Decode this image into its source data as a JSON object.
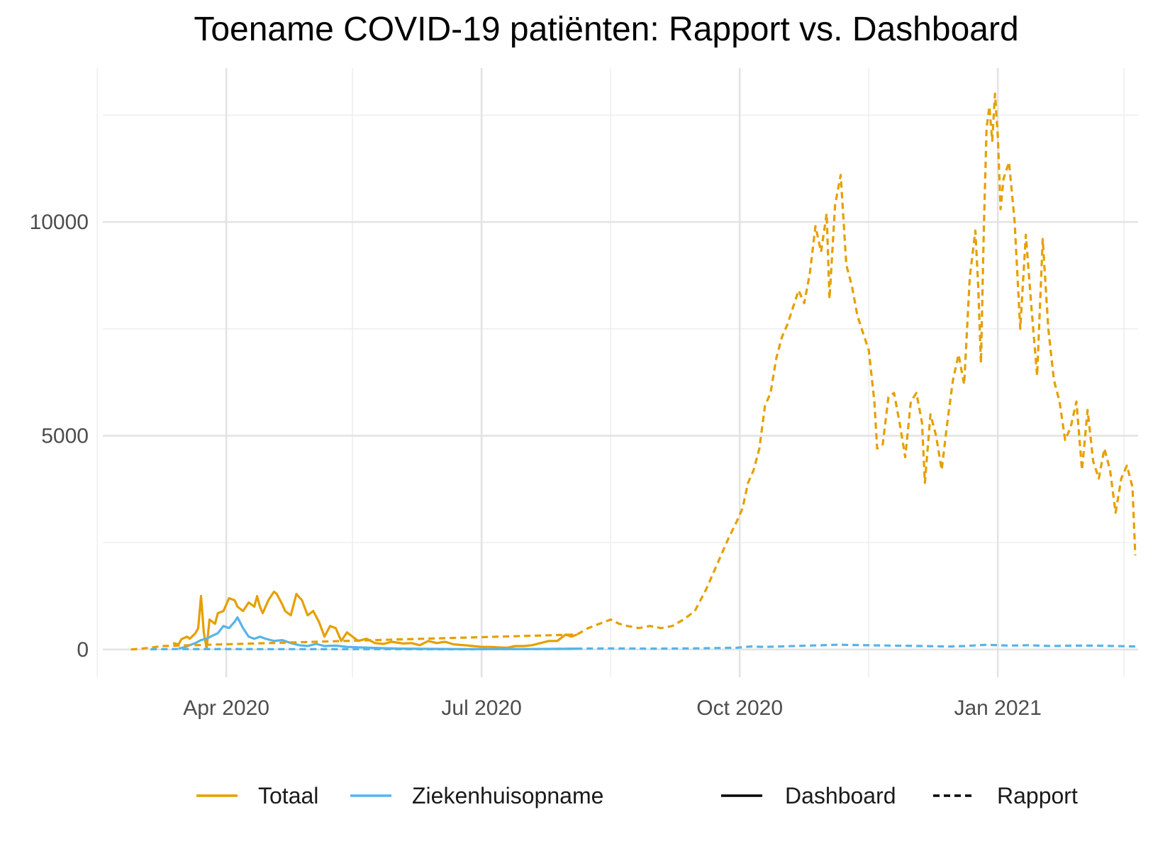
{
  "chart_data": {
    "type": "line",
    "title": "Toename COVID-19 patiënten: Rapport vs. Dashboard",
    "xlabel": "",
    "ylabel": "",
    "x_range": [
      "2020-02-17",
      "2021-02-20"
    ],
    "ylim": [
      -650,
      13600
    ],
    "x_ticks": [
      {
        "date": "2020-04-01",
        "label": "Apr 2020"
      },
      {
        "date": "2020-07-01",
        "label": "Jul 2020"
      },
      {
        "date": "2020-10-01",
        "label": "Oct 2020"
      },
      {
        "date": "2021-01-01",
        "label": "Jan 2021"
      }
    ],
    "x_minor_ticks": [
      "2020-02-15",
      "2020-05-16",
      "2020-08-16",
      "2020-11-16",
      "2021-02-15"
    ],
    "y_ticks": [
      0,
      5000,
      10000
    ],
    "y_minor_ticks": [
      2500,
      7500,
      12500
    ],
    "grid": true,
    "legend_position": "bottom",
    "legend": {
      "colour": [
        {
          "label": "Totaal",
          "color": "#E69F00"
        },
        {
          "label": "Ziekenhuisopname",
          "color": "#56B4E9"
        }
      ],
      "linetype": [
        {
          "label": "Dashboard",
          "style": "solid"
        },
        {
          "label": "Rapport",
          "style": "dashed"
        }
      ]
    },
    "series": [
      {
        "name": "Totaal",
        "source": "Dashboard",
        "color": "#E69F00",
        "style": "solid",
        "points": [
          [
            "2020-03-13",
            150
          ],
          [
            "2020-03-15",
            120
          ],
          [
            "2020-03-16",
            240
          ],
          [
            "2020-03-18",
            300
          ],
          [
            "2020-03-19",
            250
          ],
          [
            "2020-03-21",
            380
          ],
          [
            "2020-03-22",
            500
          ],
          [
            "2020-03-23",
            1250
          ],
          [
            "2020-03-24",
            400
          ],
          [
            "2020-03-25",
            20
          ],
          [
            "2020-03-26",
            700
          ],
          [
            "2020-03-28",
            600
          ],
          [
            "2020-03-29",
            850
          ],
          [
            "2020-03-31",
            900
          ],
          [
            "2020-04-02",
            1200
          ],
          [
            "2020-04-04",
            1150
          ],
          [
            "2020-04-05",
            1000
          ],
          [
            "2020-04-07",
            900
          ],
          [
            "2020-04-09",
            1100
          ],
          [
            "2020-04-11",
            1000
          ],
          [
            "2020-04-12",
            1250
          ],
          [
            "2020-04-13",
            1000
          ],
          [
            "2020-04-14",
            850
          ],
          [
            "2020-04-16",
            1150
          ],
          [
            "2020-04-18",
            1350
          ],
          [
            "2020-04-19",
            1300
          ],
          [
            "2020-04-21",
            1050
          ],
          [
            "2020-04-22",
            900
          ],
          [
            "2020-04-24",
            800
          ],
          [
            "2020-04-26",
            1300
          ],
          [
            "2020-04-28",
            1150
          ],
          [
            "2020-04-30",
            800
          ],
          [
            "2020-05-02",
            900
          ],
          [
            "2020-05-04",
            650
          ],
          [
            "2020-05-06",
            300
          ],
          [
            "2020-05-08",
            550
          ],
          [
            "2020-05-10",
            500
          ],
          [
            "2020-05-12",
            200
          ],
          [
            "2020-05-14",
            400
          ],
          [
            "2020-05-16",
            300
          ],
          [
            "2020-05-18",
            200
          ],
          [
            "2020-05-21",
            250
          ],
          [
            "2020-05-24",
            150
          ],
          [
            "2020-05-27",
            130
          ],
          [
            "2020-05-30",
            180
          ],
          [
            "2020-06-03",
            140
          ],
          [
            "2020-06-06",
            150
          ],
          [
            "2020-06-09",
            100
          ],
          [
            "2020-06-12",
            200
          ],
          [
            "2020-06-15",
            150
          ],
          [
            "2020-06-18",
            180
          ],
          [
            "2020-06-21",
            120
          ],
          [
            "2020-06-25",
            100
          ],
          [
            "2020-06-28",
            80
          ],
          [
            "2020-07-01",
            60
          ],
          [
            "2020-07-04",
            60
          ],
          [
            "2020-07-07",
            50
          ],
          [
            "2020-07-10",
            40
          ],
          [
            "2020-07-13",
            80
          ],
          [
            "2020-07-16",
            80
          ],
          [
            "2020-07-19",
            100
          ],
          [
            "2020-07-22",
            150
          ],
          [
            "2020-07-25",
            200
          ],
          [
            "2020-07-28",
            200
          ],
          [
            "2020-07-31",
            350
          ],
          [
            "2020-08-02",
            300
          ],
          [
            "2020-08-04",
            350
          ]
        ]
      },
      {
        "name": "Totaal",
        "source": "Rapport",
        "color": "#E69F00",
        "style": "dashed",
        "points": [
          [
            "2020-02-27",
            0
          ],
          [
            "2020-03-02",
            20
          ],
          [
            "2020-03-06",
            50
          ],
          [
            "2020-03-09",
            80
          ],
          [
            "2020-08-04",
            350
          ],
          [
            "2020-08-08",
            500
          ],
          [
            "2020-08-12",
            600
          ],
          [
            "2020-08-16",
            700
          ],
          [
            "2020-08-19",
            600
          ],
          [
            "2020-08-22",
            550
          ],
          [
            "2020-08-26",
            500
          ],
          [
            "2020-08-30",
            550
          ],
          [
            "2020-09-03",
            500
          ],
          [
            "2020-09-07",
            550
          ],
          [
            "2020-09-11",
            700
          ],
          [
            "2020-09-15",
            900
          ],
          [
            "2020-09-19",
            1400
          ],
          [
            "2020-09-23",
            2000
          ],
          [
            "2020-09-27",
            2600
          ],
          [
            "2020-09-30",
            3000
          ],
          [
            "2020-10-02",
            3300
          ],
          [
            "2020-10-04",
            3900
          ],
          [
            "2020-10-06",
            4200
          ],
          [
            "2020-10-08",
            4700
          ],
          [
            "2020-10-10",
            5700
          ],
          [
            "2020-10-12",
            6000
          ],
          [
            "2020-10-14",
            6800
          ],
          [
            "2020-10-16",
            7300
          ],
          [
            "2020-10-18",
            7600
          ],
          [
            "2020-10-20",
            8000
          ],
          [
            "2020-10-22",
            8400
          ],
          [
            "2020-10-24",
            8100
          ],
          [
            "2020-10-26",
            8800
          ],
          [
            "2020-10-28",
            9900
          ],
          [
            "2020-10-30",
            9300
          ],
          [
            "2020-11-01",
            10200
          ],
          [
            "2020-11-02",
            8200
          ],
          [
            "2020-11-04",
            10400
          ],
          [
            "2020-11-06",
            11100
          ],
          [
            "2020-11-08",
            9000
          ],
          [
            "2020-11-10",
            8500
          ],
          [
            "2020-11-12",
            7800
          ],
          [
            "2020-11-14",
            7400
          ],
          [
            "2020-11-16",
            7000
          ],
          [
            "2020-11-18",
            5800
          ],
          [
            "2020-11-19",
            4700
          ],
          [
            "2020-11-21",
            4800
          ],
          [
            "2020-11-23",
            5900
          ],
          [
            "2020-11-25",
            6000
          ],
          [
            "2020-11-27",
            5300
          ],
          [
            "2020-11-29",
            4500
          ],
          [
            "2020-12-01",
            5800
          ],
          [
            "2020-12-03",
            6000
          ],
          [
            "2020-12-05",
            5300
          ],
          [
            "2020-12-06",
            3900
          ],
          [
            "2020-12-08",
            5500
          ],
          [
            "2020-12-10",
            5000
          ],
          [
            "2020-12-12",
            4200
          ],
          [
            "2020-12-14",
            5300
          ],
          [
            "2020-12-16",
            6300
          ],
          [
            "2020-12-18",
            6900
          ],
          [
            "2020-12-20",
            6200
          ],
          [
            "2020-12-22",
            8700
          ],
          [
            "2020-12-24",
            9800
          ],
          [
            "2020-12-25",
            8500
          ],
          [
            "2020-12-26",
            6700
          ],
          [
            "2020-12-27",
            9800
          ],
          [
            "2020-12-28",
            12200
          ],
          [
            "2020-12-29",
            12700
          ],
          [
            "2020-12-30",
            11900
          ],
          [
            "2020-12-31",
            13000
          ],
          [
            "2021-01-01",
            12000
          ],
          [
            "2021-01-02",
            10300
          ],
          [
            "2021-01-03",
            11000
          ],
          [
            "2021-01-05",
            11400
          ],
          [
            "2021-01-07",
            10000
          ],
          [
            "2021-01-09",
            7500
          ],
          [
            "2021-01-11",
            9700
          ],
          [
            "2021-01-13",
            8000
          ],
          [
            "2021-01-15",
            6400
          ],
          [
            "2021-01-17",
            9600
          ],
          [
            "2021-01-19",
            7500
          ],
          [
            "2021-01-21",
            6300
          ],
          [
            "2021-01-23",
            5800
          ],
          [
            "2021-01-25",
            4900
          ],
          [
            "2021-01-27",
            5200
          ],
          [
            "2021-01-29",
            5800
          ],
          [
            "2021-01-31",
            4200
          ],
          [
            "2021-02-02",
            5600
          ],
          [
            "2021-02-04",
            4400
          ],
          [
            "2021-02-06",
            4000
          ],
          [
            "2021-02-08",
            4700
          ],
          [
            "2021-02-10",
            4200
          ],
          [
            "2021-02-12",
            3200
          ],
          [
            "2021-02-14",
            4000
          ],
          [
            "2021-02-16",
            4300
          ],
          [
            "2021-02-18",
            3800
          ],
          [
            "2021-02-19",
            2200
          ]
        ]
      },
      {
        "name": "Ziekenhuisopname",
        "source": "Dashboard",
        "color": "#56B4E9",
        "style": "solid",
        "points": [
          [
            "2020-03-15",
            20
          ],
          [
            "2020-03-17",
            50
          ],
          [
            "2020-03-19",
            100
          ],
          [
            "2020-03-21",
            150
          ],
          [
            "2020-03-23",
            220
          ],
          [
            "2020-03-25",
            250
          ],
          [
            "2020-03-27",
            320
          ],
          [
            "2020-03-29",
            380
          ],
          [
            "2020-03-31",
            550
          ],
          [
            "2020-04-02",
            500
          ],
          [
            "2020-04-04",
            650
          ],
          [
            "2020-04-05",
            750
          ],
          [
            "2020-04-07",
            500
          ],
          [
            "2020-04-09",
            300
          ],
          [
            "2020-04-11",
            250
          ],
          [
            "2020-04-13",
            300
          ],
          [
            "2020-04-15",
            250
          ],
          [
            "2020-04-18",
            200
          ],
          [
            "2020-04-21",
            220
          ],
          [
            "2020-04-24",
            150
          ],
          [
            "2020-04-27",
            100
          ],
          [
            "2020-04-30",
            80
          ],
          [
            "2020-05-03",
            130
          ],
          [
            "2020-05-06",
            80
          ],
          [
            "2020-05-10",
            90
          ],
          [
            "2020-05-14",
            60
          ],
          [
            "2020-05-18",
            50
          ],
          [
            "2020-05-22",
            40
          ],
          [
            "2020-05-27",
            30
          ],
          [
            "2020-06-02",
            20
          ],
          [
            "2020-06-10",
            15
          ],
          [
            "2020-06-20",
            10
          ],
          [
            "2020-07-01",
            8
          ],
          [
            "2020-07-15",
            10
          ],
          [
            "2020-08-01",
            15
          ],
          [
            "2020-08-04",
            20
          ]
        ]
      },
      {
        "name": "Ziekenhuisopname",
        "source": "Rapport",
        "color": "#56B4E9",
        "style": "dashed",
        "points": [
          [
            "2020-03-05",
            5
          ],
          [
            "2020-03-12",
            10
          ],
          [
            "2020-06-22",
            5
          ],
          [
            "2020-06-28",
            5
          ],
          [
            "2020-07-05",
            8
          ],
          [
            "2020-07-15",
            10
          ],
          [
            "2020-07-25",
            12
          ],
          [
            "2020-08-04",
            20
          ],
          [
            "2020-08-16",
            25
          ],
          [
            "2020-08-31",
            20
          ],
          [
            "2020-09-15",
            25
          ],
          [
            "2020-09-30",
            40
          ],
          [
            "2020-10-05",
            70
          ],
          [
            "2020-10-10",
            60
          ],
          [
            "2020-10-15",
            70
          ],
          [
            "2020-10-25",
            90
          ],
          [
            "2020-11-05",
            110
          ],
          [
            "2020-11-15",
            100
          ],
          [
            "2020-11-25",
            90
          ],
          [
            "2020-12-05",
            80
          ],
          [
            "2020-12-15",
            70
          ],
          [
            "2020-12-20",
            80
          ],
          [
            "2020-12-28",
            110
          ],
          [
            "2021-01-05",
            90
          ],
          [
            "2021-01-12",
            100
          ],
          [
            "2021-01-20",
            80
          ],
          [
            "2021-01-28",
            90
          ],
          [
            "2021-02-05",
            90
          ],
          [
            "2021-02-12",
            80
          ],
          [
            "2021-02-19",
            70
          ]
        ]
      }
    ]
  }
}
